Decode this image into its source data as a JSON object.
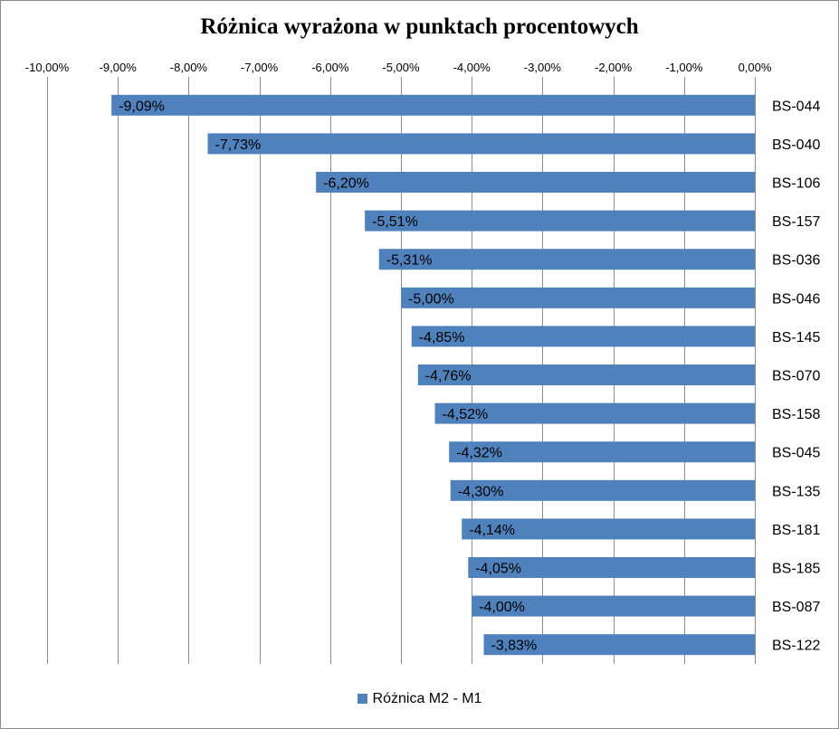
{
  "chart_data": {
    "type": "bar",
    "orientation": "horizontal",
    "title": "Różnica wyrażona w punktach procentowych",
    "categories": [
      "BS-044",
      "BS-040",
      "BS-106",
      "BS-157",
      "BS-036",
      "BS-046",
      "BS-145",
      "BS-070",
      "BS-158",
      "BS-045",
      "BS-135",
      "BS-181",
      "BS-185",
      "BS-087",
      "BS-122"
    ],
    "series": [
      {
        "name": "Różnica M2 - M1",
        "values": [
          -9.09,
          -7.73,
          -6.2,
          -5.51,
          -5.31,
          -5.0,
          -4.85,
          -4.76,
          -4.52,
          -4.32,
          -4.3,
          -4.14,
          -4.05,
          -4.0,
          -3.83
        ],
        "data_labels": [
          "-9,09%",
          "-7,73%",
          "-6,20%",
          "-5,51%",
          "-5,31%",
          "-5,00%",
          "-4,85%",
          "-4,76%",
          "-4,52%",
          "-4,32%",
          "-4,30%",
          "-4,14%",
          "-4,05%",
          "-4,00%",
          "-3,83%"
        ],
        "color": "#4f81bd"
      }
    ],
    "xlim": [
      -10,
      0
    ],
    "x_ticks": [
      -10,
      -9,
      -8,
      -7,
      -6,
      -5,
      -4,
      -3,
      -2,
      -1,
      0
    ],
    "x_tick_labels": [
      "-10,00%",
      "-9,00%",
      "-8,00%",
      "-7,00%",
      "-6,00%",
      "-5,00%",
      "-4,00%",
      "-3,00%",
      "-2,00%",
      "-1,00%",
      "0,00%"
    ],
    "x_axis_position": "top",
    "category_axis_position": "right",
    "grid": true,
    "legend_position": "bottom"
  }
}
